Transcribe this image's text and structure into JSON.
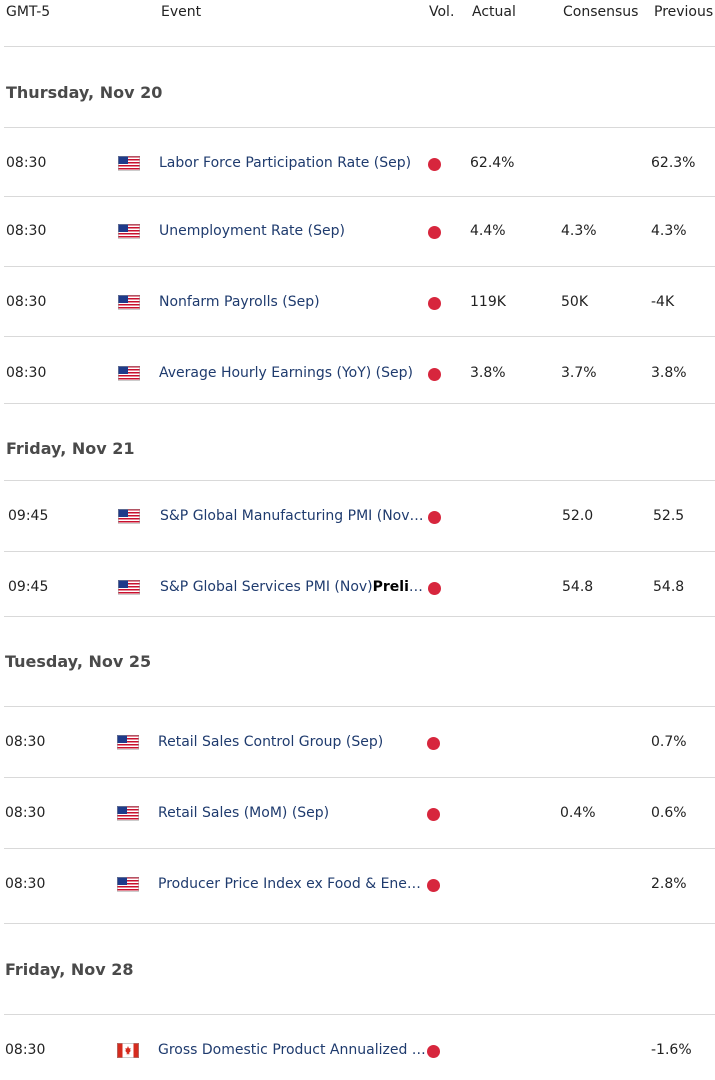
{
  "header": {
    "tz": "GMT-5",
    "event": "Event",
    "vol": "Vol.",
    "actual": "Actual",
    "consensus": "Consensus",
    "previous": "Previous"
  },
  "colors": {
    "impact_high": "#d7263d",
    "event_text": "#1f3b6e"
  },
  "sections": [
    {
      "date": "Thursday, Nov 20",
      "rows": [
        {
          "time": "08:30",
          "flag": "us-flag-icon",
          "event": "Labor Force Participation Rate (Sep)",
          "event_bold": "",
          "actual": "62.4%",
          "consensus": "",
          "previous": "62.3%"
        },
        {
          "time": "08:30",
          "flag": "us-flag-icon",
          "event": "Unemployment Rate (Sep)",
          "event_bold": "",
          "actual": "4.4%",
          "consensus": "4.3%",
          "previous": "4.3%"
        },
        {
          "time": "08:30",
          "flag": "us-flag-icon",
          "event": "Nonfarm Payrolls (Sep)",
          "event_bold": "",
          "actual": "119K",
          "consensus": "50K",
          "previous": "-4K"
        },
        {
          "time": "08:30",
          "flag": "us-flag-icon",
          "event": "Average Hourly Earnings (YoY) (Sep)",
          "event_bold": "",
          "actual": "3.8%",
          "consensus": "3.7%",
          "previous": "3.8%"
        }
      ]
    },
    {
      "date": "Friday, Nov 21",
      "rows": [
        {
          "time": "09:45",
          "flag": "us-flag-icon",
          "event": "S&P Global Manufacturing PMI (Nov)…",
          "event_bold": "",
          "actual": "",
          "consensus": "52.0",
          "previous": "52.5"
        },
        {
          "time": "09:45",
          "flag": "us-flag-icon",
          "event": "S&P Global Services PMI (Nov)",
          "event_bold": "Prelimi…",
          "actual": "",
          "consensus": "54.8",
          "previous": "54.8"
        }
      ]
    },
    {
      "date": "Tuesday, Nov 25",
      "rows": [
        {
          "time": "08:30",
          "flag": "us-flag-icon",
          "event": "Retail Sales Control Group (Sep)",
          "event_bold": "",
          "actual": "",
          "consensus": "",
          "previous": "0.7%"
        },
        {
          "time": "08:30",
          "flag": "us-flag-icon",
          "event": "Retail Sales (MoM) (Sep)",
          "event_bold": "",
          "actual": "",
          "consensus": "0.4%",
          "previous": "0.6%"
        },
        {
          "time": "08:30",
          "flag": "us-flag-icon",
          "event": "Producer Price Index ex Food & Energ…",
          "event_bold": "",
          "actual": "",
          "consensus": "",
          "previous": "2.8%"
        }
      ]
    },
    {
      "date": "Friday, Nov 28",
      "rows": [
        {
          "time": "08:30",
          "flag": "ca-flag-icon",
          "event": "Gross Domestic Product Annualized (…",
          "event_bold": "",
          "actual": "",
          "consensus": "",
          "previous": "-1.6%"
        }
      ]
    }
  ]
}
